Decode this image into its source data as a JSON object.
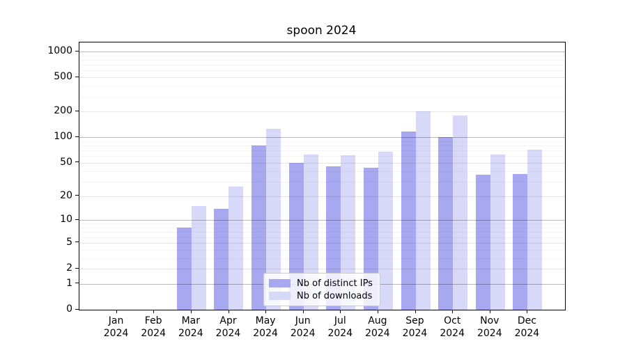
{
  "title": "spoon 2024",
  "colors": {
    "ips": "#a8a8f0",
    "downloads": "#d8d8f8"
  },
  "legend": {
    "items": [
      {
        "label": "Nb of distinct IPs",
        "series": "ips"
      },
      {
        "label": "Nb of downloads",
        "series": "downloads"
      }
    ]
  },
  "y_axis": {
    "tick_values": [
      0,
      1,
      2,
      5,
      10,
      20,
      50,
      100,
      200,
      500,
      1000
    ],
    "tick_labels": [
      "0",
      "1",
      "2",
      "5",
      "10",
      "20",
      "50",
      "100",
      "200",
      "500",
      "1000"
    ],
    "minor_gridlines": [
      3,
      4,
      6,
      7,
      8,
      9,
      30,
      40,
      60,
      70,
      80,
      90,
      300,
      400,
      600,
      700,
      800,
      900
    ]
  },
  "x_axis": {
    "tick_labels": [
      {
        "month": "Jan",
        "year": "2024"
      },
      {
        "month": "Feb",
        "year": "2024"
      },
      {
        "month": "Mar",
        "year": "2024"
      },
      {
        "month": "Apr",
        "year": "2024"
      },
      {
        "month": "May",
        "year": "2024"
      },
      {
        "month": "Jun",
        "year": "2024"
      },
      {
        "month": "Jul",
        "year": "2024"
      },
      {
        "month": "Aug",
        "year": "2024"
      },
      {
        "month": "Sep",
        "year": "2024"
      },
      {
        "month": "Oct",
        "year": "2024"
      },
      {
        "month": "Nov",
        "year": "2024"
      },
      {
        "month": "Dec",
        "year": "2024"
      }
    ]
  },
  "chart_data": {
    "type": "bar",
    "title": "spoon 2024",
    "categories": [
      "Jan 2024",
      "Feb 2024",
      "Mar 2024",
      "Apr 2024",
      "May 2024",
      "Jun 2024",
      "Jul 2024",
      "Aug 2024",
      "Sep 2024",
      "Oct 2024",
      "Nov 2024",
      "Dec 2024"
    ],
    "series": [
      {
        "name": "Nb of distinct IPs",
        "color": "#a8a8f0",
        "values": [
          0,
          0,
          8,
          14,
          80,
          50,
          45,
          44,
          117,
          100,
          36,
          37
        ]
      },
      {
        "name": "Nb of downloads",
        "color": "#d8d8f8",
        "values": [
          0,
          0,
          15,
          26,
          125,
          63,
          61,
          68,
          200,
          180,
          63,
          71
        ]
      }
    ],
    "xlabel": "",
    "ylabel": "",
    "yscale": "log1p",
    "yticks": [
      0,
      1,
      2,
      5,
      10,
      20,
      50,
      100,
      200,
      500,
      1000
    ],
    "ylim_top": 1280,
    "grid": true,
    "grid_on_top_of_bars": true,
    "legend_position": "lower center"
  }
}
